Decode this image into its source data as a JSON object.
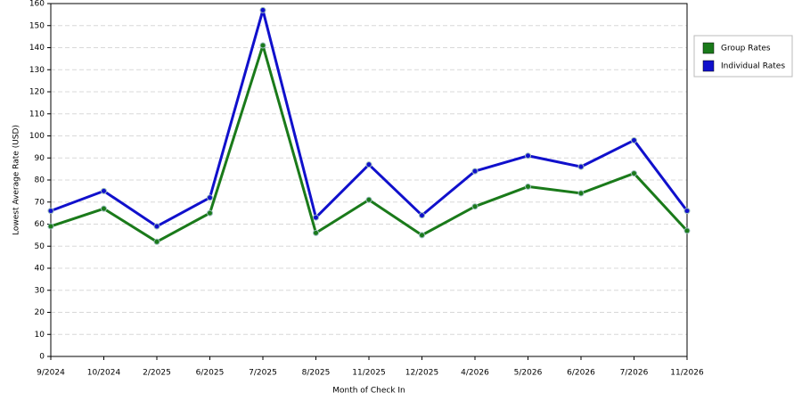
{
  "chart_data": {
    "type": "line",
    "x_label": "Month of Check In",
    "y_label": "Lowest Average Rate (USD)",
    "categories": [
      "9/2024",
      "10/2024",
      "2/2025",
      "6/2025",
      "7/2025",
      "8/2025",
      "11/2025",
      "12/2025",
      "4/2026",
      "5/2026",
      "6/2026",
      "7/2026",
      "11/2026"
    ],
    "series": [
      {
        "name": "Group Rates",
        "color": "#1a7a1a",
        "values": [
          59,
          67,
          52,
          65,
          141,
          56,
          71,
          55,
          68,
          77,
          74,
          83,
          57
        ]
      },
      {
        "name": "Individual Rates",
        "color": "#1010cc",
        "values": [
          66,
          75,
          59,
          72,
          157,
          63,
          87,
          64,
          84,
          91,
          86,
          98,
          66
        ]
      }
    ],
    "ylim": [
      0,
      160
    ],
    "yticks": [
      0,
      10,
      20,
      30,
      40,
      50,
      60,
      70,
      80,
      90,
      100,
      110,
      120,
      130,
      140,
      150,
      160
    ],
    "grid": true,
    "legend": "right"
  }
}
